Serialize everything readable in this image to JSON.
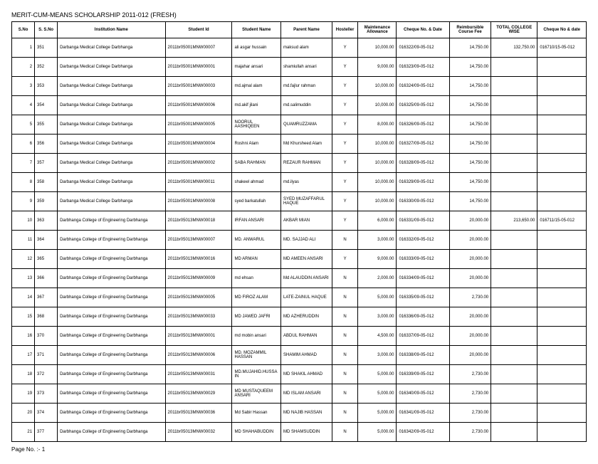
{
  "title": "MERIT-CUM-MEANS SCHOLARSHIP 2011-012 (FRESH)",
  "footer": "Page No. :- 1",
  "columns": [
    "S.No",
    "S. S.No",
    "Institution Name",
    "Student Id",
    "Student Name",
    "Parent Name",
    "Hosteller",
    "Maintenance Allowance",
    "Cheque No. & Date",
    "Reimbursible Course Fee",
    "TOTAL COLLEGE WISE",
    "Cheque No & date"
  ],
  "colClasses": [
    "col-sno",
    "col-ssno",
    "col-inst",
    "col-stid",
    "col-stname",
    "col-parent",
    "col-host",
    "col-maint",
    "col-cheque",
    "col-reimb",
    "col-total",
    "col-cheque2"
  ],
  "rows": [
    [
      "1",
      "351",
      "Darbanga Medical College Darbhanga",
      "2011br05001MNW00007",
      "ali asgar hussain",
      "maksud alam",
      "Y",
      "10,000.00",
      "016322/09-05-012",
      "14,750.00",
      "132,750.00",
      "016710/15-05-012"
    ],
    [
      "2",
      "352",
      "Darbanga Medical College Darbhanga",
      "2011br05001MNW00001",
      "majahar ansari",
      "shamiullah ansari",
      "Y",
      "9,000.00",
      "016323/09-05-012",
      "14,750.00",
      "",
      ""
    ],
    [
      "3",
      "353",
      "Darbanga Medical College Darbhanga",
      "2011br05001MNW00003",
      "md.ajmal alam",
      "md.fajlur rahman",
      "Y",
      "10,000.00",
      "016324/09-05-012",
      "14,750.00",
      "",
      ""
    ],
    [
      "4",
      "354",
      "Darbanga Medical College Darbhanga",
      "2011br05001MNW00006",
      "md.akif jilani",
      "md.salimuddin",
      "Y",
      "10,000.00",
      "016325/09-05-012",
      "14,750.00",
      "",
      ""
    ],
    [
      "5",
      "355",
      "Darbanga Medical College Darbhanga",
      "2011br05001MNW00005",
      "NOORUL AASHIQEEN",
      "QUAMRUZZAMA",
      "Y",
      "8,000.00",
      "016326/09-05-012",
      "14,750.00",
      "",
      ""
    ],
    [
      "6",
      "356",
      "Darbanga Medical College Darbhanga",
      "2011br05001MNW00004",
      "Roshni Alam",
      "Md Khursheed Alam",
      "Y",
      "10,000.00",
      "016327/09-05-012",
      "14,750.00",
      "",
      ""
    ],
    [
      "7",
      "357",
      "Darbanga Medical College Darbhanga",
      "2011br05001MNW00002",
      "SABA RAHMAN",
      "REZAUR RAHMAN",
      "Y",
      "10,000.00",
      "016328/09-05-012",
      "14,750.00",
      "",
      ""
    ],
    [
      "8",
      "358",
      "Darbanga Medical College Darbhanga",
      "2011br05001MNW00011",
      "shakeel ahmad",
      "md.ilyas",
      "Y",
      "10,000.00",
      "016329/09-05-012",
      "14,750.00",
      "",
      ""
    ],
    [
      "9",
      "359",
      "Darbanga Medical College Darbhanga",
      "2011br05001MNW00008",
      "syed barkatullah",
      "SYED MUZAFFARUL HAQUE",
      "Y",
      "10,000.00",
      "016330/09-05-012",
      "14,750.00",
      "",
      ""
    ],
    [
      "10",
      "363",
      "Darbhanga College of Engineering Darbhanga",
      "2011br05013MNW00018",
      "IRFAN ANSARI",
      "AKBAR MIAN",
      "Y",
      "6,000.00",
      "016331/09-05-012",
      "20,000.00",
      "213,650.00",
      "016711/15-05-012"
    ],
    [
      "11",
      "364",
      "Darbhanga College of Engineering Darbhanga",
      "2011br05013MNW00007",
      "MD. ANWARUL",
      "MD. SAJJAD ALI",
      "N",
      "3,000.00",
      "016332/09-05-012",
      "20,000.00",
      "",
      ""
    ],
    [
      "12",
      "365",
      "Darbhanga College of Engineering Darbhanga",
      "2011br05013MNW00016",
      "MD ARMAN",
      "MD AMEEN ANSARI",
      "Y",
      "9,000.00",
      "016333/09-05-012",
      "20,000.00",
      "",
      ""
    ],
    [
      "13",
      "366",
      "Darbhanga College of Engineering Darbhanga",
      "2011br05013MNW00009",
      "md ehsan",
      "Md ALAUDDIN ANSARI",
      "N",
      "2,000.00",
      "016334/09-05-012",
      "20,000.00",
      "",
      ""
    ],
    [
      "14",
      "367",
      "Darbhanga College of Engineering Darbhanga",
      "2011br05013MNW00005",
      "MD FIROZ ALAM",
      "LATE-ZAINUL HAQUE",
      "N",
      "5,000.00",
      "016335/09-05-012",
      "2,730.00",
      "",
      ""
    ],
    [
      "15",
      "368",
      "Darbhanga College of Engineering Darbhanga",
      "2011br05013MNW00033",
      "MD JAWED JAFRI",
      "MD AZHERUDDIN",
      "N",
      "3,000.00",
      "016336/09-05-012",
      "20,000.00",
      "",
      ""
    ],
    [
      "16",
      "370",
      "Darbhanga College of Engineering Darbhanga",
      "2011br05013MNW00001",
      "md mobin ansari",
      "ABDUL RAHMAN",
      "N",
      "4,500.00",
      "016337/09-05-012",
      "20,000.00",
      "",
      ""
    ],
    [
      "17",
      "371",
      "Darbhanga College of Engineering Darbhanga",
      "2011br05013MNW00006",
      "MD. MOZAMMIL HASSAN",
      "SHAMIM AHMAD",
      "N",
      "3,000.00",
      "016338/09-05-012",
      "20,000.00",
      "",
      ""
    ],
    [
      "18",
      "372",
      "Darbhanga College of Engineering Darbhanga",
      "2011br05013MNW00031",
      "MD.MUJAHID.HUSSAIN",
      "MD SHAKIL AHMAD",
      "N",
      "5,000.00",
      "016339/09-05-012",
      "2,730.00",
      "",
      ""
    ],
    [
      "19",
      "373",
      "Darbhanga College of Engineering Darbhanga",
      "2011br05013MNW00029",
      "MD MUSTAQUEEM ANSARI",
      "MD ISLAM ANSARI",
      "N",
      "5,000.00",
      "016340/09-05-012",
      "2,730.00",
      "",
      ""
    ],
    [
      "20",
      "374",
      "Darbhanga College of Engineering Darbhanga",
      "2011br05013MNW00036",
      "Md Sabir Hassan",
      "MD NAJIB HASSAN",
      "N",
      "5,000.00",
      "016341/09-05-012",
      "2,730.00",
      "",
      ""
    ],
    [
      "21",
      "377",
      "Darbhanga College of Engineering Darbhanga",
      "2011br05013MNW00032",
      "MD SHAHABUDDIN",
      "MD SHAMSUDDIN",
      "N",
      "5,000.00",
      "016342/09-05-012",
      "2,730.00",
      "",
      ""
    ]
  ]
}
